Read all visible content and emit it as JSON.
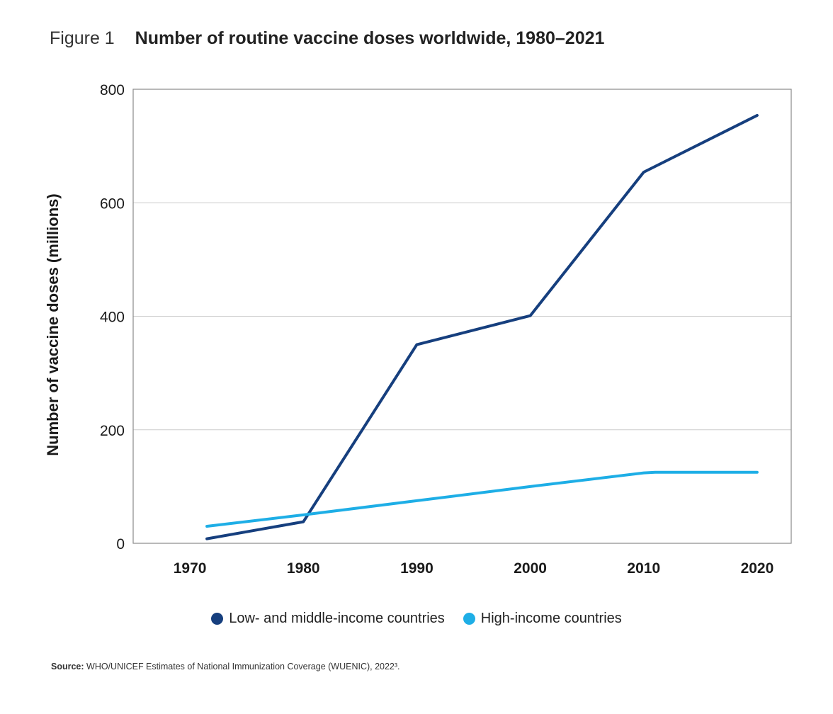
{
  "figure": {
    "label": "Figure 1",
    "title": "Number of routine vaccine doses worldwide, 1980–2021"
  },
  "source": {
    "prefix": "Source:",
    "text": "WHO/UNICEF Estimates of National Immunization Coverage (WUENIC), 2022³."
  },
  "colors": {
    "low_middle": "#163f7e",
    "high": "#1eaee6",
    "grid": "#cccccc",
    "frame": "#8a8a8a"
  },
  "chart_data": {
    "type": "line",
    "title": "Number of routine vaccine doses worldwide, 1980–2021",
    "xlabel": "",
    "ylabel": "Number of vaccine doses (millions)",
    "xlim": [
      1965,
      2023
    ],
    "ylim": [
      0,
      800
    ],
    "x_ticks": [
      1970,
      1980,
      1990,
      2000,
      2010,
      2020
    ],
    "y_ticks": [
      0,
      200,
      400,
      600,
      800
    ],
    "grid": "horizontal",
    "legend_position": "bottom-center",
    "series": [
      {
        "name": "Low- and middle-income countries",
        "color": "#163f7e",
        "points": [
          [
            1971.5,
            8
          ],
          [
            1980,
            38
          ],
          [
            1990,
            350
          ],
          [
            2000,
            401
          ],
          [
            2010,
            654
          ],
          [
            2020,
            754
          ]
        ]
      },
      {
        "name": "High-income countries",
        "color": "#1eaee6",
        "points": [
          [
            1971.5,
            30
          ],
          [
            1980,
            50
          ],
          [
            1990,
            75
          ],
          [
            2000,
            100
          ],
          [
            2010,
            124
          ],
          [
            2011,
            125
          ],
          [
            2020,
            125
          ]
        ]
      }
    ]
  }
}
